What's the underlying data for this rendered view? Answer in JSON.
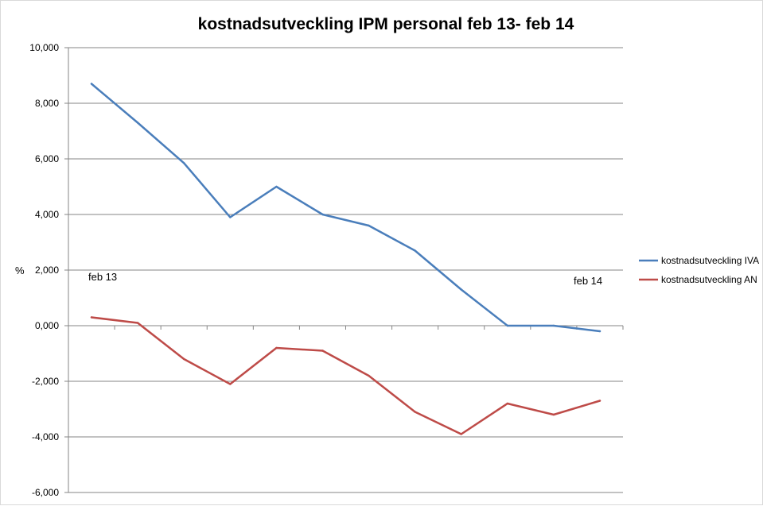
{
  "chart_data": {
    "type": "line",
    "title": "kostnadsutveckling IPM personal feb 13- feb 14",
    "ylabel": "%",
    "xlabel": "",
    "ylim": [
      -6,
      10
    ],
    "y_ticks": [
      "10,000",
      "8,000",
      "6,000",
      "4,000",
      "2,000",
      "0,000",
      "-2,000",
      "-4,000",
      "-6,000"
    ],
    "x_point_count": 12,
    "annotations": [
      {
        "text": "feb 13",
        "near_index": 0
      },
      {
        "text": "feb 14",
        "near_index": 11
      }
    ],
    "legend_position": "right",
    "grid": "horizontal",
    "series": [
      {
        "name": "kostnadsutveckling IVA",
        "color": "#4a7ebb",
        "values": [
          8.7,
          7.3,
          5.85,
          3.9,
          5.0,
          4.0,
          3.6,
          2.7,
          1.3,
          0.0,
          0.0,
          -0.2
        ]
      },
      {
        "name": "kostnadsutveckling AN",
        "color": "#be4b48",
        "values": [
          0.3,
          0.1,
          -1.2,
          -2.1,
          -0.8,
          -0.9,
          -1.8,
          -3.1,
          -3.9,
          -2.8,
          -3.2,
          -2.7
        ]
      }
    ]
  }
}
